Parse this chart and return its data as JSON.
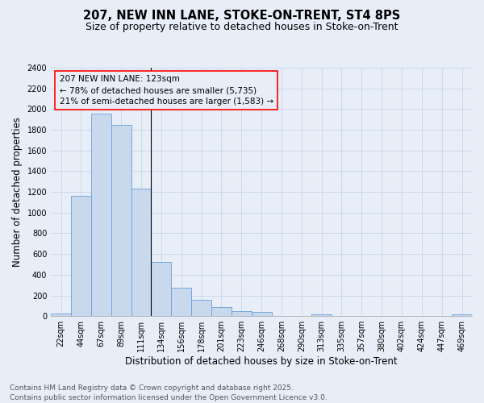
{
  "title_line1": "207, NEW INN LANE, STOKE-ON-TRENT, ST4 8PS",
  "title_line2": "Size of property relative to detached houses in Stoke-on-Trent",
  "xlabel": "Distribution of detached houses by size in Stoke-on-Trent",
  "ylabel": "Number of detached properties",
  "categories": [
    "22sqm",
    "44sqm",
    "67sqm",
    "89sqm",
    "111sqm",
    "134sqm",
    "156sqm",
    "178sqm",
    "201sqm",
    "223sqm",
    "246sqm",
    "268sqm",
    "290sqm",
    "313sqm",
    "335sqm",
    "357sqm",
    "380sqm",
    "402sqm",
    "424sqm",
    "447sqm",
    "469sqm"
  ],
  "values": [
    25,
    1160,
    1960,
    1850,
    1230,
    520,
    275,
    155,
    90,
    48,
    38,
    0,
    0,
    20,
    0,
    0,
    0,
    0,
    0,
    0,
    15
  ],
  "bar_color": "#c8d9ee",
  "bar_edge_color": "#6a9fd8",
  "grid_color": "#c8d4e8",
  "bg_color": "#e8eef8",
  "ylim": [
    0,
    2400
  ],
  "yticks": [
    0,
    200,
    400,
    600,
    800,
    1000,
    1200,
    1400,
    1600,
    1800,
    2000,
    2200,
    2400
  ],
  "annotation_text": "207 NEW INN LANE: 123sqm\n← 78% of detached houses are smaller (5,735)\n21% of semi-detached houses are larger (1,583) →",
  "property_line_bin": 4,
  "footer_line1": "Contains HM Land Registry data © Crown copyright and database right 2025.",
  "footer_line2": "Contains public sector information licensed under the Open Government Licence v3.0.",
  "title_fontsize": 10.5,
  "subtitle_fontsize": 9,
  "axis_label_fontsize": 8.5,
  "tick_fontsize": 7,
  "annotation_fontsize": 7.5,
  "footer_fontsize": 6.5
}
